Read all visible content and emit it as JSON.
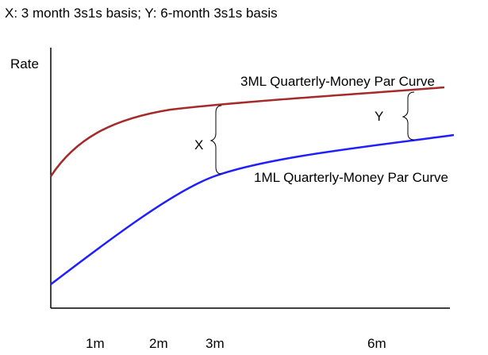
{
  "caption": "X: 3 month 3s1s basis; Y: 6-month 3s1s basis",
  "chart_data": {
    "type": "line",
    "ylabel": "Rate",
    "xlabel": "",
    "grid": false,
    "x_ticks": [
      "1m",
      "2m",
      "3m",
      "6m"
    ],
    "series": [
      {
        "name": "3ML Quarterly-Money Par Curve",
        "color": "#a52a2a"
      },
      {
        "name": "1ML Quarterly-Money Par Curve",
        "color": "#1f1fff"
      }
    ],
    "annotations": [
      {
        "text": "X",
        "spans": "3m"
      },
      {
        "text": "Y",
        "spans": "right end"
      }
    ]
  }
}
